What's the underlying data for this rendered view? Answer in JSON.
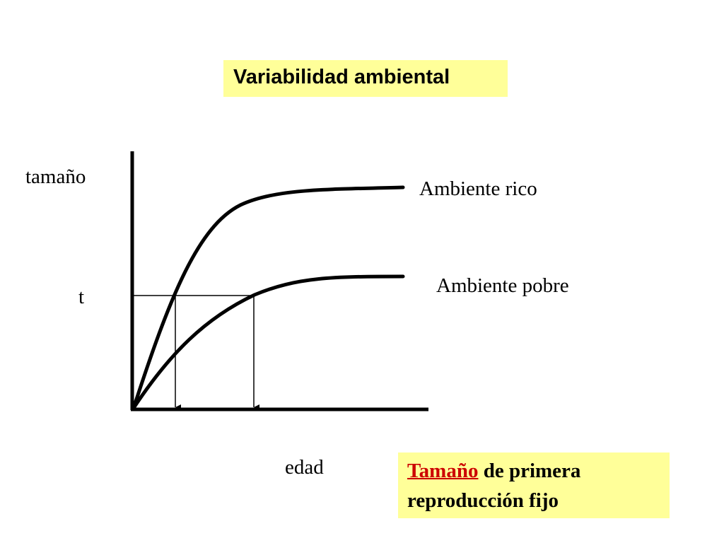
{
  "title": "Variabilidad ambiental",
  "labels": {
    "y_axis": "tamaño",
    "x_axis": "edad",
    "threshold": "t",
    "curve_rich": "Ambiente rico",
    "curve_poor": "Ambiente pobre"
  },
  "note": {
    "highlight": "Tamaño",
    "line1_rest": " de primera",
    "line2": "reproducción fijo"
  },
  "colors": {
    "box_fill": "#ffff99",
    "highlight": "#cc0000",
    "ink": "#000000"
  }
}
